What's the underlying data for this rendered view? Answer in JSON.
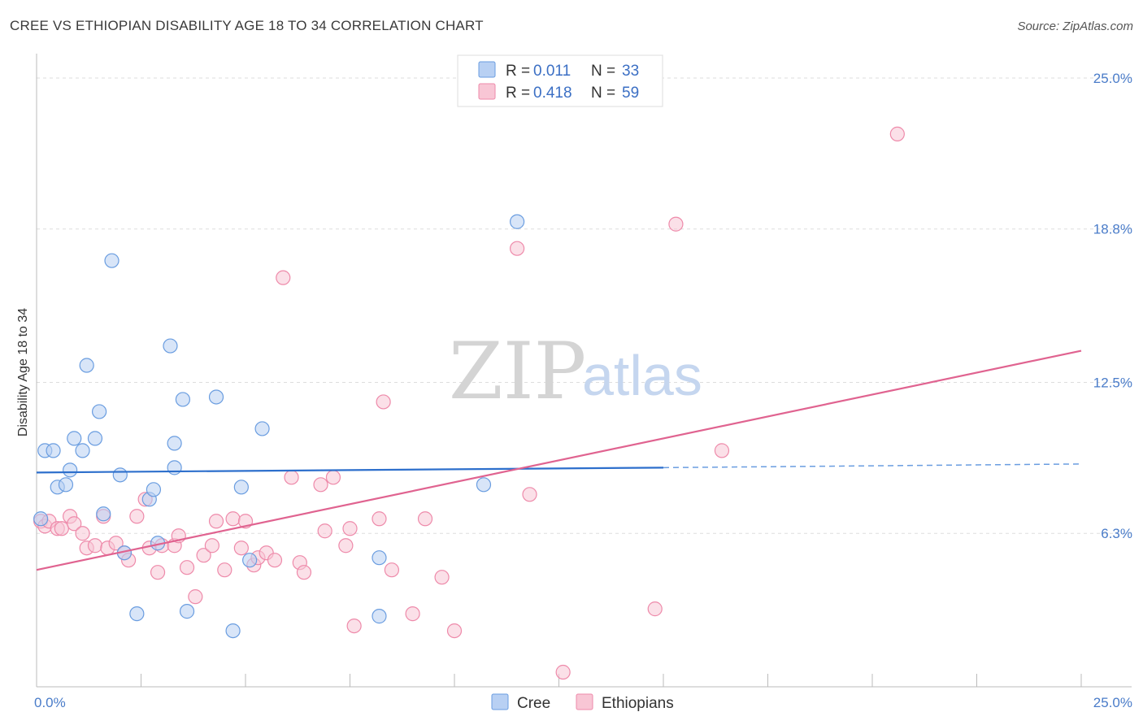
{
  "header": {
    "title": "CREE VS ETHIOPIAN DISABILITY AGE 18 TO 34 CORRELATION CHART",
    "source": "Source: ZipAtlas.com"
  },
  "watermark": {
    "zip": "ZIP",
    "atlas": "atlas"
  },
  "colors": {
    "cree": "#6a9de0",
    "cree_fill": "#b8d0f3",
    "cree_line": "#2d6fcc",
    "ethiopians": "#ee8aaa",
    "ethiopians_fill": "#f8c6d5",
    "ethiopians_line": "#e06390",
    "grid": "#dddddd",
    "tick_label": "#4a7cc9"
  },
  "legend": {
    "rows": [
      {
        "r_label": "R =",
        "r_value": "0.011",
        "n_label": "N =",
        "n_value": "33"
      },
      {
        "r_label": "R =",
        "r_value": "0.418",
        "n_label": "N =",
        "n_value": "59"
      }
    ]
  },
  "bottom_legend": {
    "cree": "Cree",
    "ethiopians": "Ethiopians"
  },
  "chart_data": {
    "type": "scatter",
    "title": "CREE VS ETHIOPIAN DISABILITY AGE 18 TO 34 CORRELATION CHART",
    "xlabel": "",
    "ylabel": "Disability Age 18 to 34",
    "xlim": [
      0,
      25
    ],
    "ylim": [
      0,
      25.6
    ],
    "x_tick_labels": [
      "0.0%",
      "25.0%"
    ],
    "y_ticks": [
      6.3,
      12.5,
      18.8,
      25.0
    ],
    "y_tick_labels": [
      "6.3%",
      "12.5%",
      "18.8%",
      "25.0%"
    ],
    "series": [
      {
        "name": "Cree",
        "points": [
          [
            0.1,
            6.9
          ],
          [
            0.2,
            9.7
          ],
          [
            0.4,
            9.7
          ],
          [
            0.5,
            8.2
          ],
          [
            0.7,
            8.3
          ],
          [
            0.8,
            8.9
          ],
          [
            0.9,
            10.2
          ],
          [
            1.1,
            9.7
          ],
          [
            1.2,
            13.2
          ],
          [
            1.4,
            10.2
          ],
          [
            1.5,
            11.3
          ],
          [
            1.6,
            7.1
          ],
          [
            1.8,
            17.5
          ],
          [
            2.0,
            8.7
          ],
          [
            2.1,
            5.5
          ],
          [
            2.4,
            3.0
          ],
          [
            2.7,
            7.7
          ],
          [
            2.8,
            8.1
          ],
          [
            2.9,
            5.9
          ],
          [
            3.2,
            14.0
          ],
          [
            3.3,
            10.0
          ],
          [
            3.3,
            9.0
          ],
          [
            3.5,
            11.8
          ],
          [
            3.6,
            3.1
          ],
          [
            4.3,
            11.9
          ],
          [
            4.7,
            2.3
          ],
          [
            4.9,
            8.2
          ],
          [
            5.1,
            5.2
          ],
          [
            5.4,
            10.6
          ],
          [
            8.2,
            5.3
          ],
          [
            8.2,
            2.9
          ],
          [
            10.7,
            8.3
          ],
          [
            11.5,
            19.1
          ]
        ],
        "trend": {
          "x": [
            0,
            15,
            25
          ],
          "y": [
            8.8,
            9.0,
            9.15
          ],
          "solid_until": 15
        }
      },
      {
        "name": "Ethiopians",
        "points": [
          [
            0.1,
            6.8
          ],
          [
            0.2,
            6.6
          ],
          [
            0.3,
            6.8
          ],
          [
            0.5,
            6.5
          ],
          [
            0.6,
            6.5
          ],
          [
            0.8,
            7.0
          ],
          [
            0.9,
            6.7
          ],
          [
            1.1,
            6.3
          ],
          [
            1.2,
            5.7
          ],
          [
            1.4,
            5.8
          ],
          [
            1.6,
            7.0
          ],
          [
            1.7,
            5.7
          ],
          [
            1.9,
            5.9
          ],
          [
            2.1,
            5.5
          ],
          [
            2.2,
            5.2
          ],
          [
            2.4,
            7.0
          ],
          [
            2.6,
            7.7
          ],
          [
            2.7,
            5.7
          ],
          [
            2.9,
            4.7
          ],
          [
            3.0,
            5.8
          ],
          [
            3.3,
            5.8
          ],
          [
            3.4,
            6.2
          ],
          [
            3.6,
            4.9
          ],
          [
            3.8,
            3.7
          ],
          [
            4.0,
            5.4
          ],
          [
            4.2,
            5.8
          ],
          [
            4.3,
            6.8
          ],
          [
            4.5,
            4.8
          ],
          [
            4.7,
            6.9
          ],
          [
            4.9,
            5.7
          ],
          [
            5.0,
            6.8
          ],
          [
            5.2,
            5.0
          ],
          [
            5.3,
            5.3
          ],
          [
            5.5,
            5.5
          ],
          [
            5.7,
            5.2
          ],
          [
            5.9,
            16.8
          ],
          [
            6.1,
            8.6
          ],
          [
            6.3,
            5.1
          ],
          [
            6.4,
            4.7
          ],
          [
            6.8,
            8.3
          ],
          [
            6.9,
            6.4
          ],
          [
            7.1,
            8.6
          ],
          [
            7.4,
            5.8
          ],
          [
            7.5,
            6.5
          ],
          [
            7.6,
            2.5
          ],
          [
            8.2,
            6.9
          ],
          [
            8.3,
            11.7
          ],
          [
            8.5,
            4.8
          ],
          [
            9.0,
            3.0
          ],
          [
            9.3,
            6.9
          ],
          [
            9.7,
            4.5
          ],
          [
            10.0,
            2.3
          ],
          [
            11.5,
            18.0
          ],
          [
            11.8,
            7.9
          ],
          [
            12.6,
            0.6
          ],
          [
            14.8,
            3.2
          ],
          [
            15.3,
            19.0
          ],
          [
            16.4,
            9.7
          ],
          [
            20.6,
            22.7
          ]
        ],
        "trend": {
          "x": [
            0,
            25
          ],
          "y": [
            4.8,
            13.8
          ]
        }
      }
    ],
    "grid": true,
    "legend_position": "top-center"
  }
}
